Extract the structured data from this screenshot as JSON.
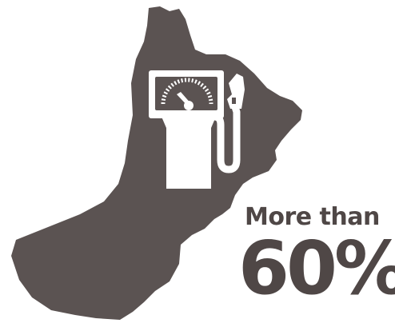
{
  "colors": {
    "shape": "#5b5352",
    "text": "#4f4746",
    "background": "#ffffff",
    "icon": "#ffffff"
  },
  "icons": {
    "map": "oman-map-silhouette",
    "pump": "fuel-pump-icon",
    "gauge": "gauge-icon",
    "nozzle": "fuel-nozzle-icon"
  },
  "stat": {
    "prefix": "More than",
    "value": "60%"
  }
}
